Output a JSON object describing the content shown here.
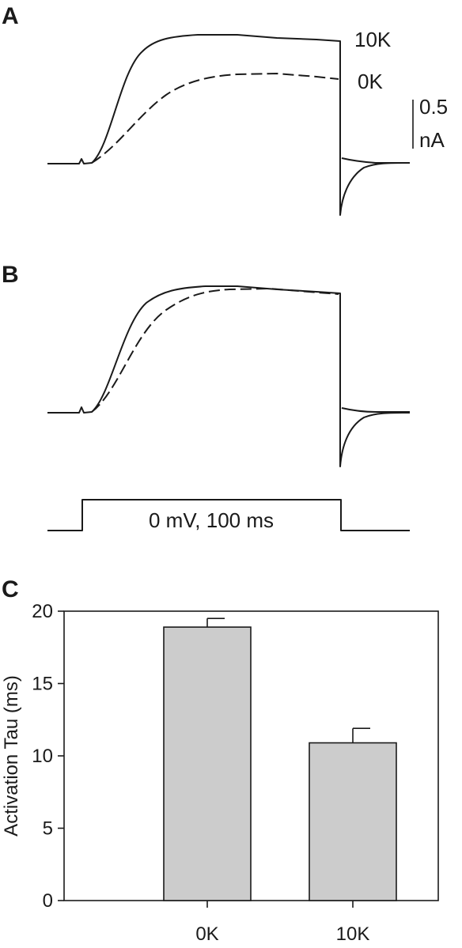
{
  "panels": {
    "a": {
      "letter": "A",
      "trace_labels": [
        "10K",
        "0K"
      ],
      "scale_bar": {
        "value": "0.5",
        "unit": "nA"
      }
    },
    "b": {
      "letter": "B"
    },
    "protocol": {
      "label": "0 mV, 100 ms"
    },
    "c": {
      "letter": "C"
    }
  },
  "chart_data": {
    "type": "bar",
    "categories": [
      "0K",
      "10K"
    ],
    "values": [
      18.9,
      10.9
    ],
    "errors": [
      0.6,
      1.0
    ],
    "title": "",
    "xlabel": "",
    "ylabel": "Activation Tau (ms)",
    "ylim": [
      0,
      20
    ],
    "yticks": [
      0,
      5,
      10,
      15,
      20
    ],
    "bar_color": "#cccccc",
    "grid": false
  }
}
